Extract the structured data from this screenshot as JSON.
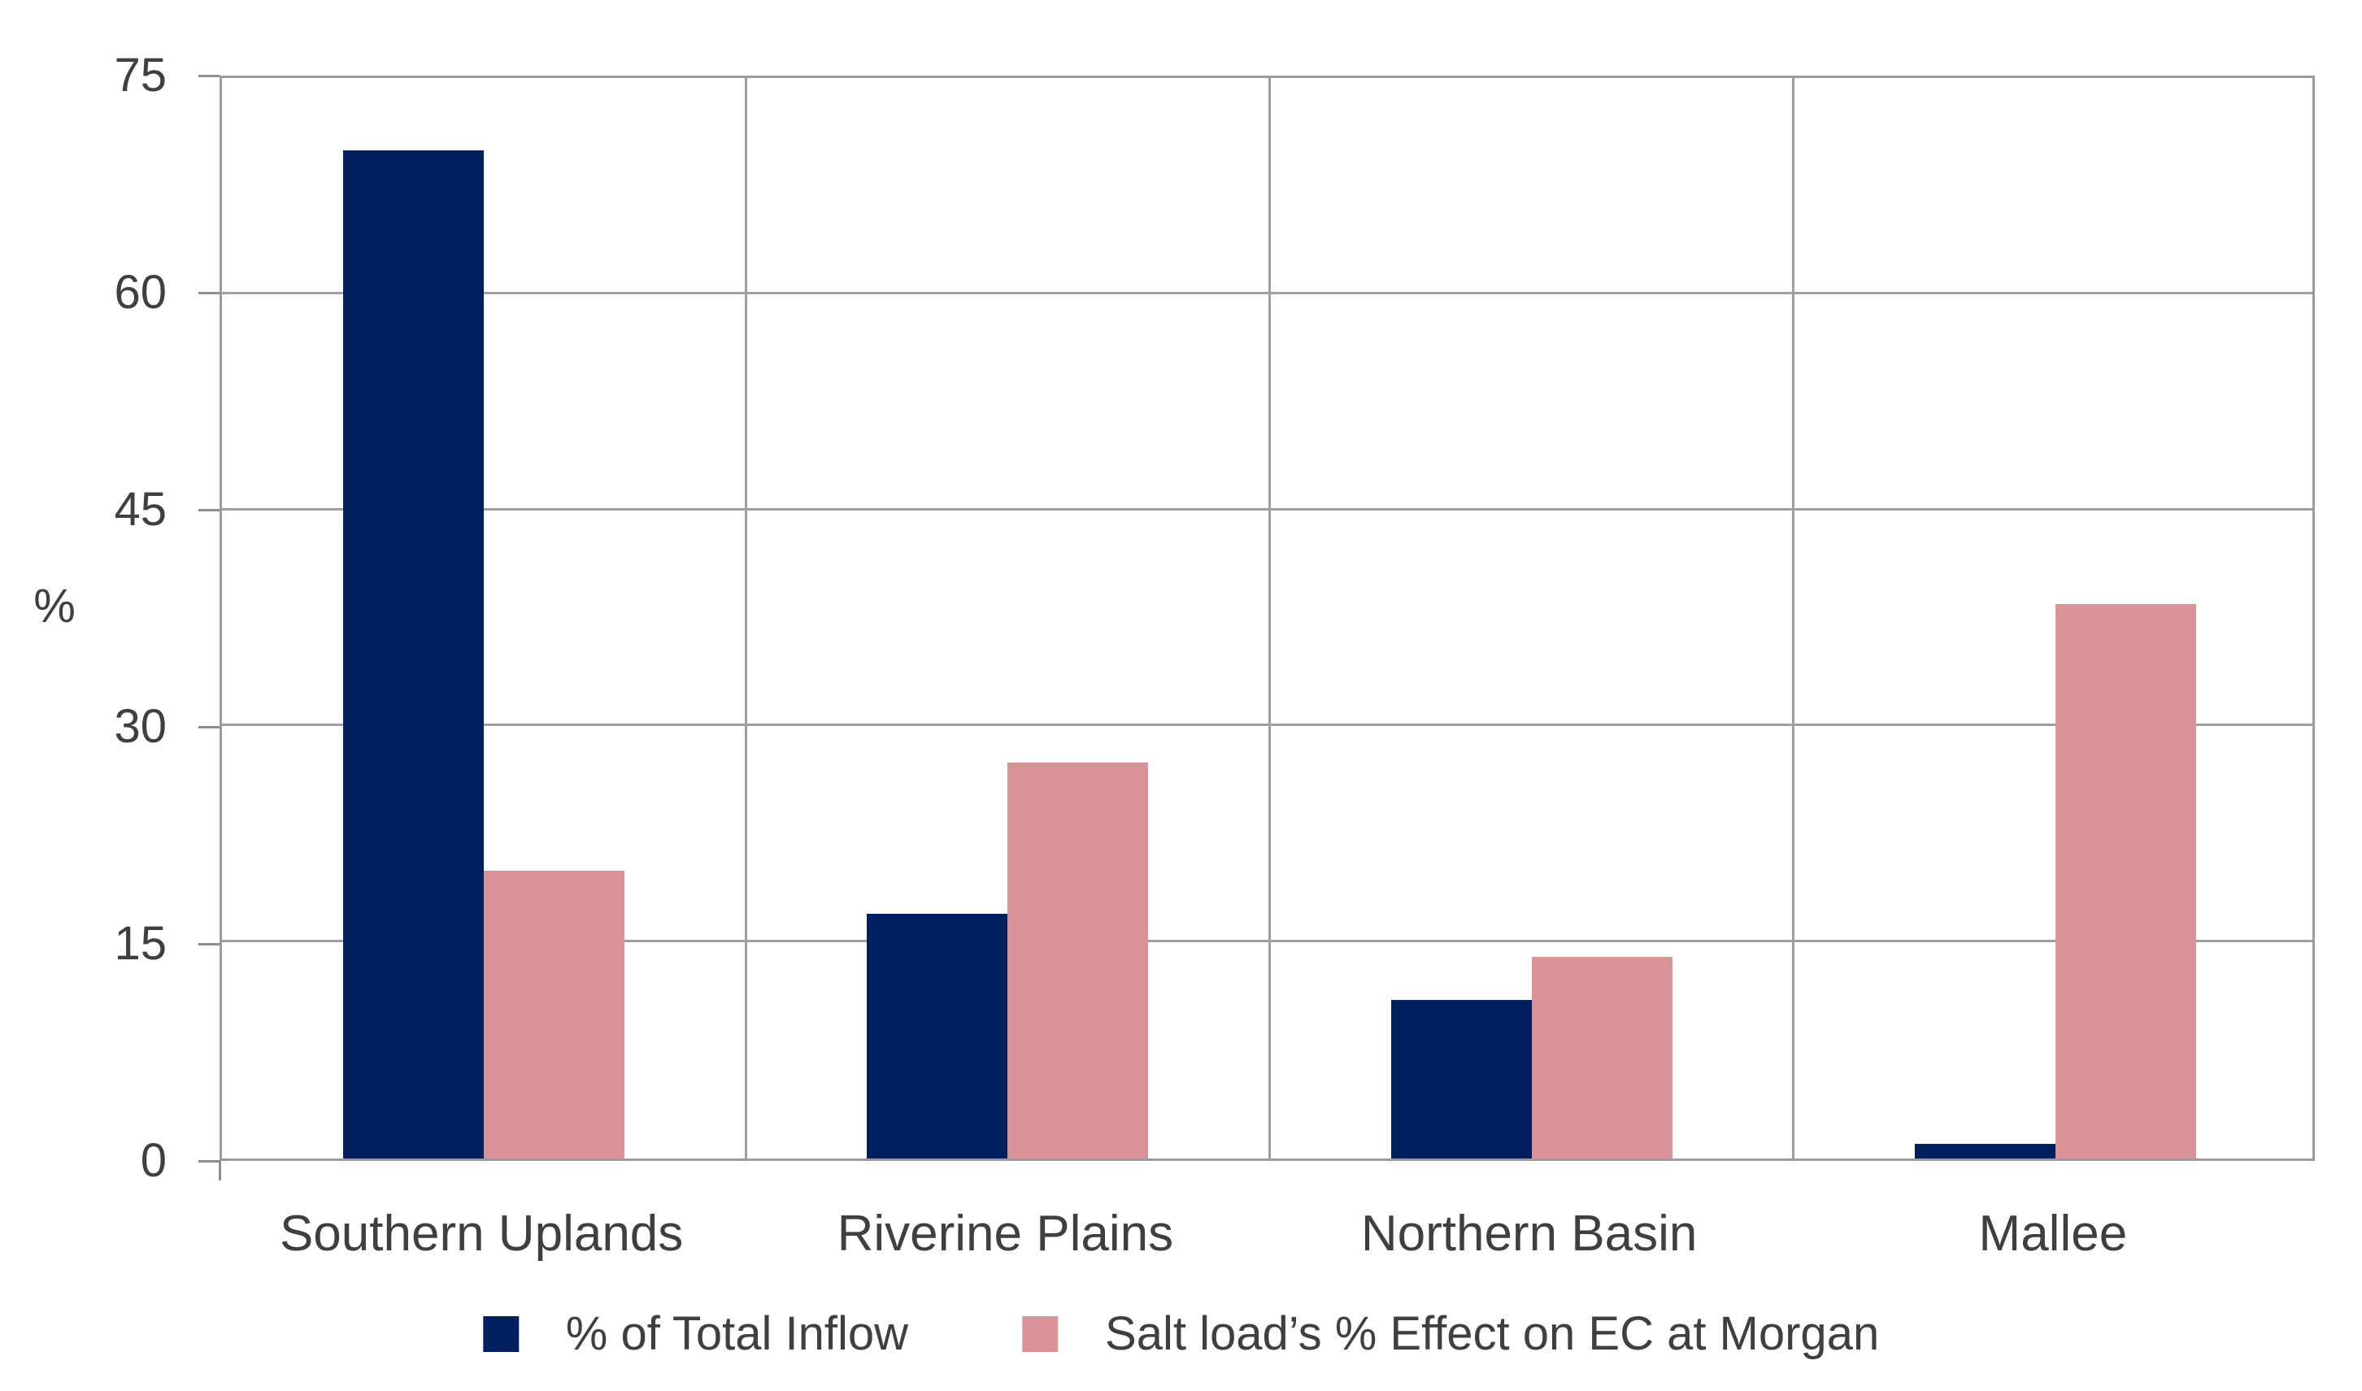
{
  "page": {
    "background_color": "#FFFFFF"
  },
  "chart_data": {
    "type": "bar",
    "title": "",
    "xlabel": "",
    "ylabel": "%",
    "ylim": [
      0,
      75
    ],
    "yticks": [
      0,
      15,
      30,
      45,
      60,
      75
    ],
    "grid": true,
    "legend_position": "bottom",
    "categories": [
      "Southern Uplands",
      "Riverine Plains",
      "Northern Basin",
      "Mallee"
    ],
    "series": [
      {
        "name": "% of Total Inflow",
        "color": "#002060",
        "values": [
          70,
          17,
          11,
          1
        ]
      },
      {
        "name": "Salt load’s % Effect on EC at Morgan",
        "color": "#D99295",
        "values": [
          20,
          27.5,
          14,
          38.5
        ]
      }
    ],
    "axis_color": "#8E8E8E",
    "gridline_color": "#A0A0A0",
    "text_color": "#3F3F3F"
  }
}
